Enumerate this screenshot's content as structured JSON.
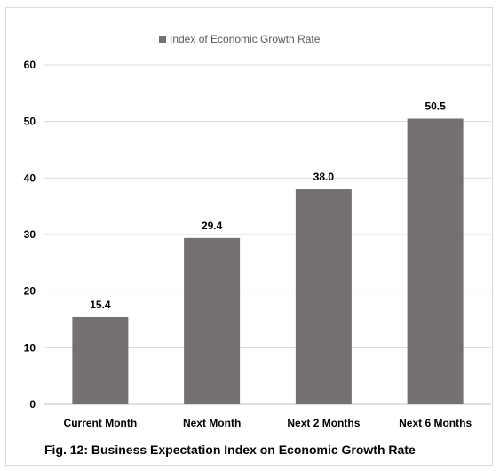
{
  "chart_data": {
    "type": "bar",
    "categories": [
      "Current Month",
      "Next Month",
      "Next 2 Months",
      "Next 6 Months"
    ],
    "series": [
      {
        "name": "Index of Economic Growth Rate",
        "values": [
          15.4,
          29.4,
          38.0,
          50.5
        ],
        "data_labels": [
          "15.4",
          "29.4",
          "38.0",
          "50.5"
        ]
      }
    ],
    "ylim": [
      0,
      60
    ],
    "yticks": [
      0,
      10,
      20,
      30,
      40,
      50,
      60
    ],
    "grid": true,
    "legend_position": "top",
    "bar_color": "#767171",
    "caption": "Fig. 12: Business Expectation Index on Economic Growth Rate"
  }
}
